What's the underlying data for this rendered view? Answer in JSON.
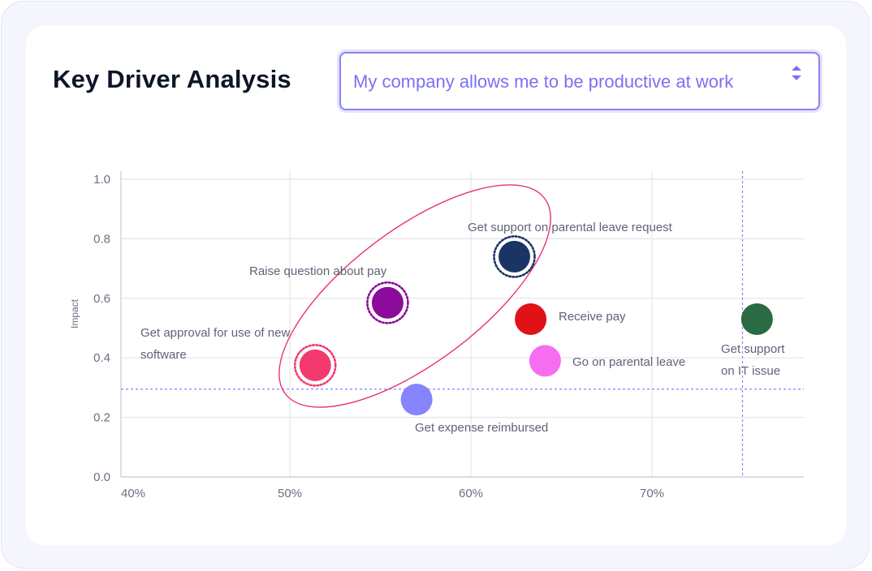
{
  "header": {
    "title": "Key Driver Analysis"
  },
  "question_select": {
    "selected": "My company allows me to be productive at work"
  },
  "colors": {
    "accent": "#7b71f0",
    "grid": "#e5e5ea",
    "reference_line": "#8a84f5",
    "highlight_ellipse": "#e8336d"
  },
  "chart_data": {
    "type": "scatter",
    "title": "",
    "xlabel": "",
    "ylabel": "Impact",
    "xlim": [
      0.4,
      0.78
    ],
    "ylim": [
      0,
      1.0
    ],
    "x_ticks": [
      {
        "value": 0.4,
        "label": "40%"
      },
      {
        "value": 0.5,
        "label": "50%"
      },
      {
        "value": 0.6,
        "label": "60%"
      },
      {
        "value": 0.7,
        "label": "70%"
      }
    ],
    "y_ticks": [
      {
        "value": 0.0,
        "label": "0.0"
      },
      {
        "value": 0.2,
        "label": "0.2"
      },
      {
        "value": 0.4,
        "label": "0.4"
      },
      {
        "value": 0.6,
        "label": "0.6"
      },
      {
        "value": 0.8,
        "label": "0.8"
      },
      {
        "value": 1.0,
        "label": "1.0"
      }
    ],
    "grid": true,
    "reference_lines": {
      "x": 0.75,
      "y": 0.295
    },
    "points": [
      {
        "label": "Get support on parental leave request",
        "x": 0.624,
        "y": 0.74,
        "color": "#1b3466",
        "highlighted": true
      },
      {
        "label": "Raise question about pay",
        "x": 0.554,
        "y": 0.585,
        "color": "#8c0a9c",
        "highlighted": true
      },
      {
        "label": "Get approval for use of new software",
        "x": 0.514,
        "y": 0.375,
        "color": "#f23a6f",
        "highlighted": true
      },
      {
        "label": "Receive pay",
        "x": 0.633,
        "y": 0.53,
        "color": "#e01217",
        "highlighted": false
      },
      {
        "label": "Go on parental leave",
        "x": 0.641,
        "y": 0.39,
        "color": "#f76df2",
        "highlighted": false
      },
      {
        "label": "Get expense reimbursed",
        "x": 0.57,
        "y": 0.26,
        "color": "#8584fb",
        "highlighted": false
      },
      {
        "label": "Get support on IT issue",
        "x": 0.758,
        "y": 0.53,
        "color": "#2a6b44",
        "highlighted": false
      }
    ]
  }
}
